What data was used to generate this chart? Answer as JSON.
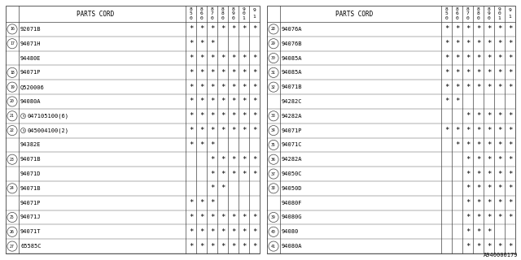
{
  "footer": "A940000179",
  "col_headers": [
    "8\n5\n0",
    "8\n6\n0",
    "8\n7\n0",
    "8\n8\n0",
    "8\n9\n0",
    "9\n0\n1",
    "9\n1"
  ],
  "left_table": {
    "rows": [
      {
        "num": "16",
        "part": "92071B",
        "marks": [
          1,
          1,
          1,
          1,
          1,
          1,
          1
        ]
      },
      {
        "num": "17",
        "part": "94071H",
        "marks": [
          1,
          1,
          1,
          0,
          0,
          0,
          0
        ]
      },
      {
        "num": "",
        "part": "94480E",
        "marks": [
          1,
          1,
          1,
          1,
          1,
          1,
          1
        ]
      },
      {
        "num": "18",
        "part": "94071P",
        "marks": [
          1,
          1,
          1,
          1,
          1,
          1,
          1
        ]
      },
      {
        "num": "19",
        "part": "Q520006",
        "marks": [
          1,
          1,
          1,
          1,
          1,
          1,
          1
        ]
      },
      {
        "num": "20",
        "part": "94080A",
        "marks": [
          1,
          1,
          1,
          1,
          1,
          1,
          1
        ]
      },
      {
        "num": "21",
        "part": "S047105100(6)",
        "marks": [
          1,
          1,
          1,
          1,
          1,
          1,
          1
        ]
      },
      {
        "num": "22",
        "part": "S045004100(2)",
        "marks": [
          1,
          1,
          1,
          1,
          1,
          1,
          1
        ]
      },
      {
        "num": "",
        "part": "94382E",
        "marks": [
          1,
          1,
          1,
          0,
          0,
          0,
          0
        ]
      },
      {
        "num": "23",
        "part": "94071B",
        "marks": [
          0,
          0,
          1,
          1,
          1,
          1,
          1
        ]
      },
      {
        "num": "",
        "part": "94071D",
        "marks": [
          0,
          0,
          1,
          1,
          1,
          1,
          1
        ]
      },
      {
        "num": "24",
        "part": "94071B",
        "marks": [
          0,
          0,
          1,
          1,
          0,
          0,
          0
        ]
      },
      {
        "num": "",
        "part": "94071P",
        "marks": [
          1,
          1,
          1,
          0,
          0,
          0,
          0
        ]
      },
      {
        "num": "25",
        "part": "94071J",
        "marks": [
          1,
          1,
          1,
          1,
          1,
          1,
          1
        ]
      },
      {
        "num": "26",
        "part": "94071T",
        "marks": [
          1,
          1,
          1,
          1,
          1,
          1,
          1
        ]
      },
      {
        "num": "27",
        "part": "65585C",
        "marks": [
          1,
          1,
          1,
          1,
          1,
          1,
          1
        ]
      }
    ]
  },
  "right_table": {
    "rows": [
      {
        "num": "28",
        "part": "94076A",
        "marks": [
          1,
          1,
          1,
          1,
          1,
          1,
          1
        ]
      },
      {
        "num": "29",
        "part": "94076B",
        "marks": [
          1,
          1,
          1,
          1,
          1,
          1,
          1
        ]
      },
      {
        "num": "30",
        "part": "94085A",
        "marks": [
          1,
          1,
          1,
          1,
          1,
          1,
          1
        ]
      },
      {
        "num": "31",
        "part": "94085A",
        "marks": [
          1,
          1,
          1,
          1,
          1,
          1,
          1
        ]
      },
      {
        "num": "32",
        "part": "94071B",
        "marks": [
          1,
          1,
          1,
          1,
          1,
          1,
          1
        ]
      },
      {
        "num": "",
        "part": "94282C",
        "marks": [
          1,
          1,
          0,
          0,
          0,
          0,
          0
        ]
      },
      {
        "num": "33",
        "part": "94282A",
        "marks": [
          0,
          0,
          1,
          1,
          1,
          1,
          1
        ]
      },
      {
        "num": "34",
        "part": "94071P",
        "marks": [
          1,
          1,
          1,
          1,
          1,
          1,
          1
        ]
      },
      {
        "num": "35",
        "part": "94071C",
        "marks": [
          0,
          1,
          1,
          1,
          1,
          1,
          1
        ]
      },
      {
        "num": "36",
        "part": "94282A",
        "marks": [
          0,
          0,
          1,
          1,
          1,
          1,
          1
        ]
      },
      {
        "num": "37",
        "part": "94050C",
        "marks": [
          0,
          0,
          1,
          1,
          1,
          1,
          1
        ]
      },
      {
        "num": "38",
        "part": "94050D",
        "marks": [
          0,
          0,
          1,
          1,
          1,
          1,
          1
        ]
      },
      {
        "num": "",
        "part": "94080F",
        "marks": [
          0,
          0,
          1,
          1,
          1,
          1,
          1
        ]
      },
      {
        "num": "39",
        "part": "94080G",
        "marks": [
          0,
          0,
          1,
          1,
          1,
          1,
          1
        ]
      },
      {
        "num": "40",
        "part": "94080",
        "marks": [
          0,
          0,
          1,
          1,
          1,
          0,
          0
        ]
      },
      {
        "num": "41",
        "part": "94080A",
        "marks": [
          0,
          0,
          1,
          1,
          1,
          1,
          1
        ]
      }
    ]
  },
  "bg_color": "#ffffff",
  "line_color": "#404040",
  "text_color": "#000000",
  "font_size": 5.0,
  "header_font_size": 5.5
}
